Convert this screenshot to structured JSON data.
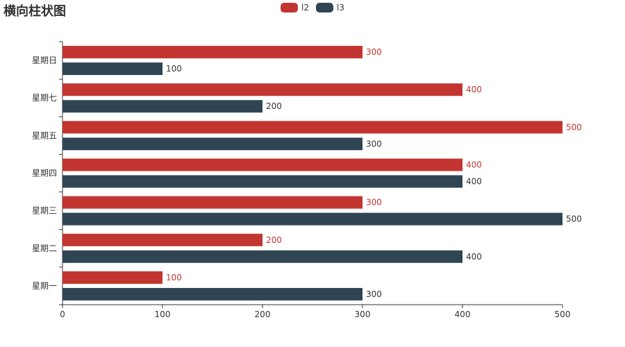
{
  "chart_data": {
    "type": "bar",
    "orientation": "horizontal",
    "title": "横向柱状图",
    "categories": [
      "星期一",
      "星期二",
      "星期三",
      "星期四",
      "星期五",
      "星期七",
      "星期日"
    ],
    "series": [
      {
        "name": "l2",
        "color": "#c23531",
        "values": [
          100,
          200,
          300,
          400,
          500,
          400,
          300
        ]
      },
      {
        "name": "l3",
        "color": "#2f4554",
        "values": [
          300,
          400,
          500,
          400,
          300,
          200,
          100
        ]
      }
    ],
    "xlim": [
      0,
      500
    ],
    "xticks": [
      0,
      100,
      200,
      300,
      400,
      500
    ],
    "grid": false,
    "legend_position": "top-center",
    "data_labels": true
  }
}
